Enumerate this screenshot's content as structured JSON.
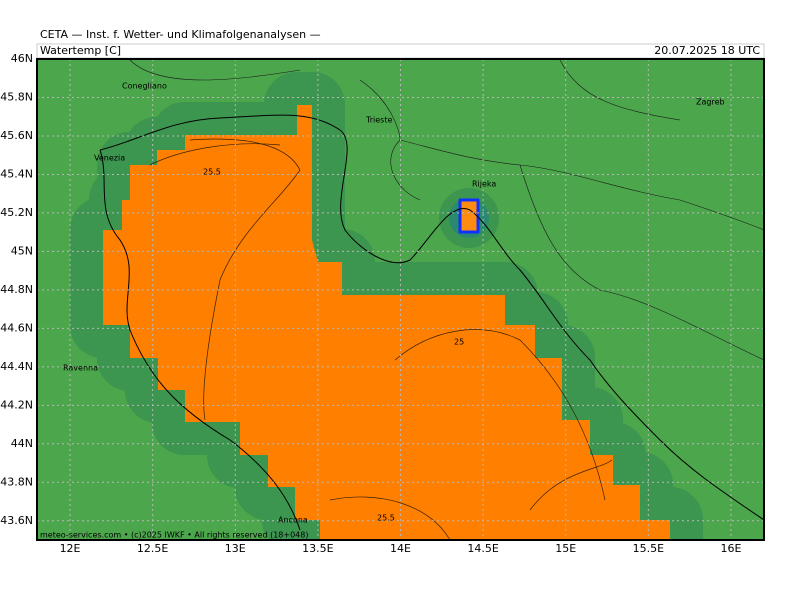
{
  "header": {
    "title": "CETA — Inst. f. Wetter- und Klimafolgenanalysen —",
    "variable": "Watertemp [C]",
    "valid_time": "20.07.2025 18 UTC"
  },
  "map": {
    "lonlim": [
      11.8,
      16.2
    ],
    "latlim": [
      43.5,
      46
    ],
    "lon_ticks": [
      {
        "value": 12,
        "label": "12E"
      },
      {
        "value": 12.5,
        "label": "12.5E"
      },
      {
        "value": 13,
        "label": "13E"
      },
      {
        "value": 13.5,
        "label": "13.5E"
      },
      {
        "value": 14,
        "label": "14E"
      },
      {
        "value": 14.5,
        "label": "14.5E"
      },
      {
        "value": 15,
        "label": "15E"
      },
      {
        "value": 15.5,
        "label": "15.5E"
      },
      {
        "value": 16,
        "label": "16E"
      }
    ],
    "lat_ticks": [
      {
        "value": 46,
        "label": "46N"
      },
      {
        "value": 45.8,
        "label": "45.8N"
      },
      {
        "value": 45.6,
        "label": "45.6N"
      },
      {
        "value": 45.4,
        "label": "45.4N"
      },
      {
        "value": 45.2,
        "label": "45.2N"
      },
      {
        "value": 45,
        "label": "45N"
      },
      {
        "value": 44.8,
        "label": "44.8N"
      },
      {
        "value": 44.6,
        "label": "44.6N"
      },
      {
        "value": 44.4,
        "label": "44.4N"
      },
      {
        "value": 44.2,
        "label": "44.2N"
      },
      {
        "value": 44,
        "label": "44N"
      },
      {
        "value": 43.8,
        "label": "43.8N"
      },
      {
        "value": 43.6,
        "label": "43.6N"
      }
    ],
    "places": [
      "Conegliano",
      "Venezia",
      "Trieste",
      "Rijeka",
      "Zagreb",
      "Ravenna",
      "Ancona"
    ],
    "contour_labels": [
      "25.5",
      "25",
      "25.5"
    ]
  },
  "footer": "meteo-services.com • (c)2025 IWKF • All rights reserved (18+048)"
}
